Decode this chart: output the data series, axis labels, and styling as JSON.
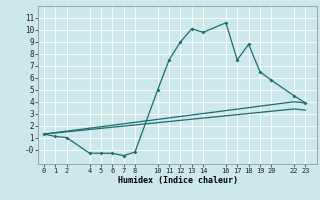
{
  "xlabel": "Humidex (Indice chaleur)",
  "ylabel": "",
  "background_color": "#cce8e8",
  "line_color": "#1a6e6e",
  "grid_color": "#ffffff",
  "xlim": [
    -0.5,
    24
  ],
  "ylim": [
    -1.2,
    12
  ],
  "xticks": [
    0,
    1,
    2,
    4,
    5,
    6,
    7,
    8,
    10,
    11,
    12,
    13,
    14,
    16,
    17,
    18,
    19,
    20,
    22,
    23
  ],
  "yticks": [
    0,
    1,
    2,
    3,
    4,
    5,
    6,
    7,
    8,
    9,
    10,
    11
  ],
  "ytick_labels": [
    "-0",
    "1",
    "2",
    "3",
    "4",
    "5",
    "6",
    "7",
    "8",
    "9",
    "10",
    "11"
  ],
  "line1_x": [
    0,
    1,
    2,
    4,
    5,
    6,
    7,
    8,
    10,
    11,
    12,
    13,
    14,
    16,
    17,
    18,
    19,
    20,
    22,
    23
  ],
  "line1_y": [
    1.3,
    1.1,
    1.0,
    -0.3,
    -0.3,
    -0.3,
    -0.5,
    -0.2,
    5.0,
    7.5,
    9.0,
    10.1,
    9.8,
    10.6,
    7.5,
    8.8,
    6.5,
    5.8,
    4.5,
    3.9
  ],
  "line2_x": [
    0,
    22,
    23
  ],
  "line2_y": [
    1.3,
    4.0,
    3.9
  ],
  "line3_x": [
    0,
    22,
    23
  ],
  "line3_y": [
    1.3,
    3.4,
    3.3
  ]
}
